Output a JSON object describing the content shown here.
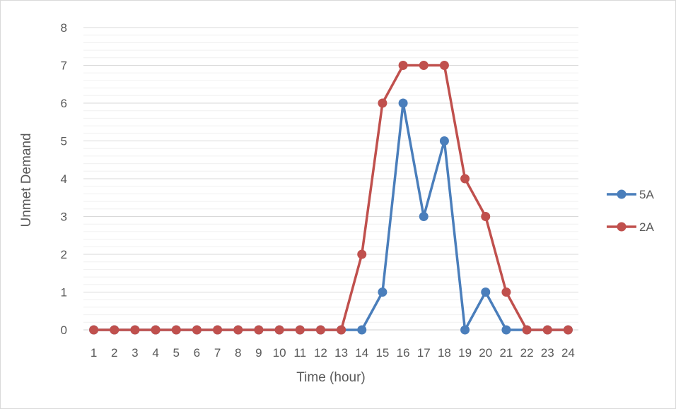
{
  "chart_data": {
    "type": "line",
    "title": "",
    "xlabel": "Time (hour)",
    "ylabel": "Unmet Demand",
    "x": [
      "1",
      "2",
      "3",
      "4",
      "5",
      "6",
      "7",
      "8",
      "9",
      "10",
      "11",
      "12",
      "13",
      "14",
      "15",
      "16",
      "17",
      "18",
      "19",
      "20",
      "21",
      "22",
      "23",
      "24"
    ],
    "ylim": [
      0,
      8
    ],
    "y_ticks": [
      "0",
      "1",
      "2",
      "3",
      "4",
      "5",
      "6",
      "7",
      "8"
    ],
    "grid": true,
    "legend_position": "right",
    "series": [
      {
        "name": "5A",
        "color": "#4a7ebb",
        "values": [
          0,
          0,
          0,
          0,
          0,
          0,
          0,
          0,
          0,
          0,
          0,
          0,
          0,
          0,
          1,
          6,
          3,
          5,
          0,
          1,
          0,
          0,
          0,
          0
        ]
      },
      {
        "name": "2A",
        "color": "#c0504d",
        "values": [
          0,
          0,
          0,
          0,
          0,
          0,
          0,
          0,
          0,
          0,
          0,
          0,
          0,
          2,
          6,
          7,
          7,
          7,
          4,
          3,
          1,
          0,
          0,
          0
        ]
      }
    ]
  }
}
